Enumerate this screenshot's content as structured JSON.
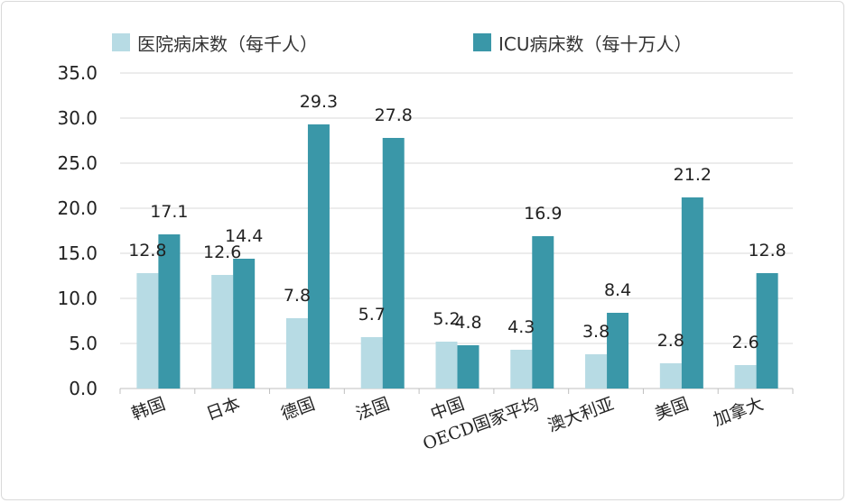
{
  "chart_data": {
    "type": "bar",
    "categories": [
      "韩国",
      "日本",
      "德国",
      "法国",
      "中国",
      "OECD国家平均",
      "澳大利亚",
      "美国",
      "加拿大"
    ],
    "series": [
      {
        "name": "医院病床数（每千人）",
        "values": [
          12.8,
          12.6,
          7.8,
          5.7,
          5.2,
          4.3,
          3.8,
          2.8,
          2.6
        ],
        "color": "#b7dbe4"
      },
      {
        "name": "ICU病床数（每十万人）",
        "values": [
          17.1,
          14.4,
          29.3,
          27.8,
          4.8,
          16.9,
          8.4,
          21.2,
          12.8
        ],
        "color": "#3a97a8"
      }
    ],
    "ylim": [
      0,
      35
    ],
    "yticks": [
      "0.0",
      "5.0",
      "10.0",
      "15.0",
      "20.0",
      "25.0",
      "30.0",
      "35.0"
    ],
    "grid": true,
    "legend": "top"
  }
}
